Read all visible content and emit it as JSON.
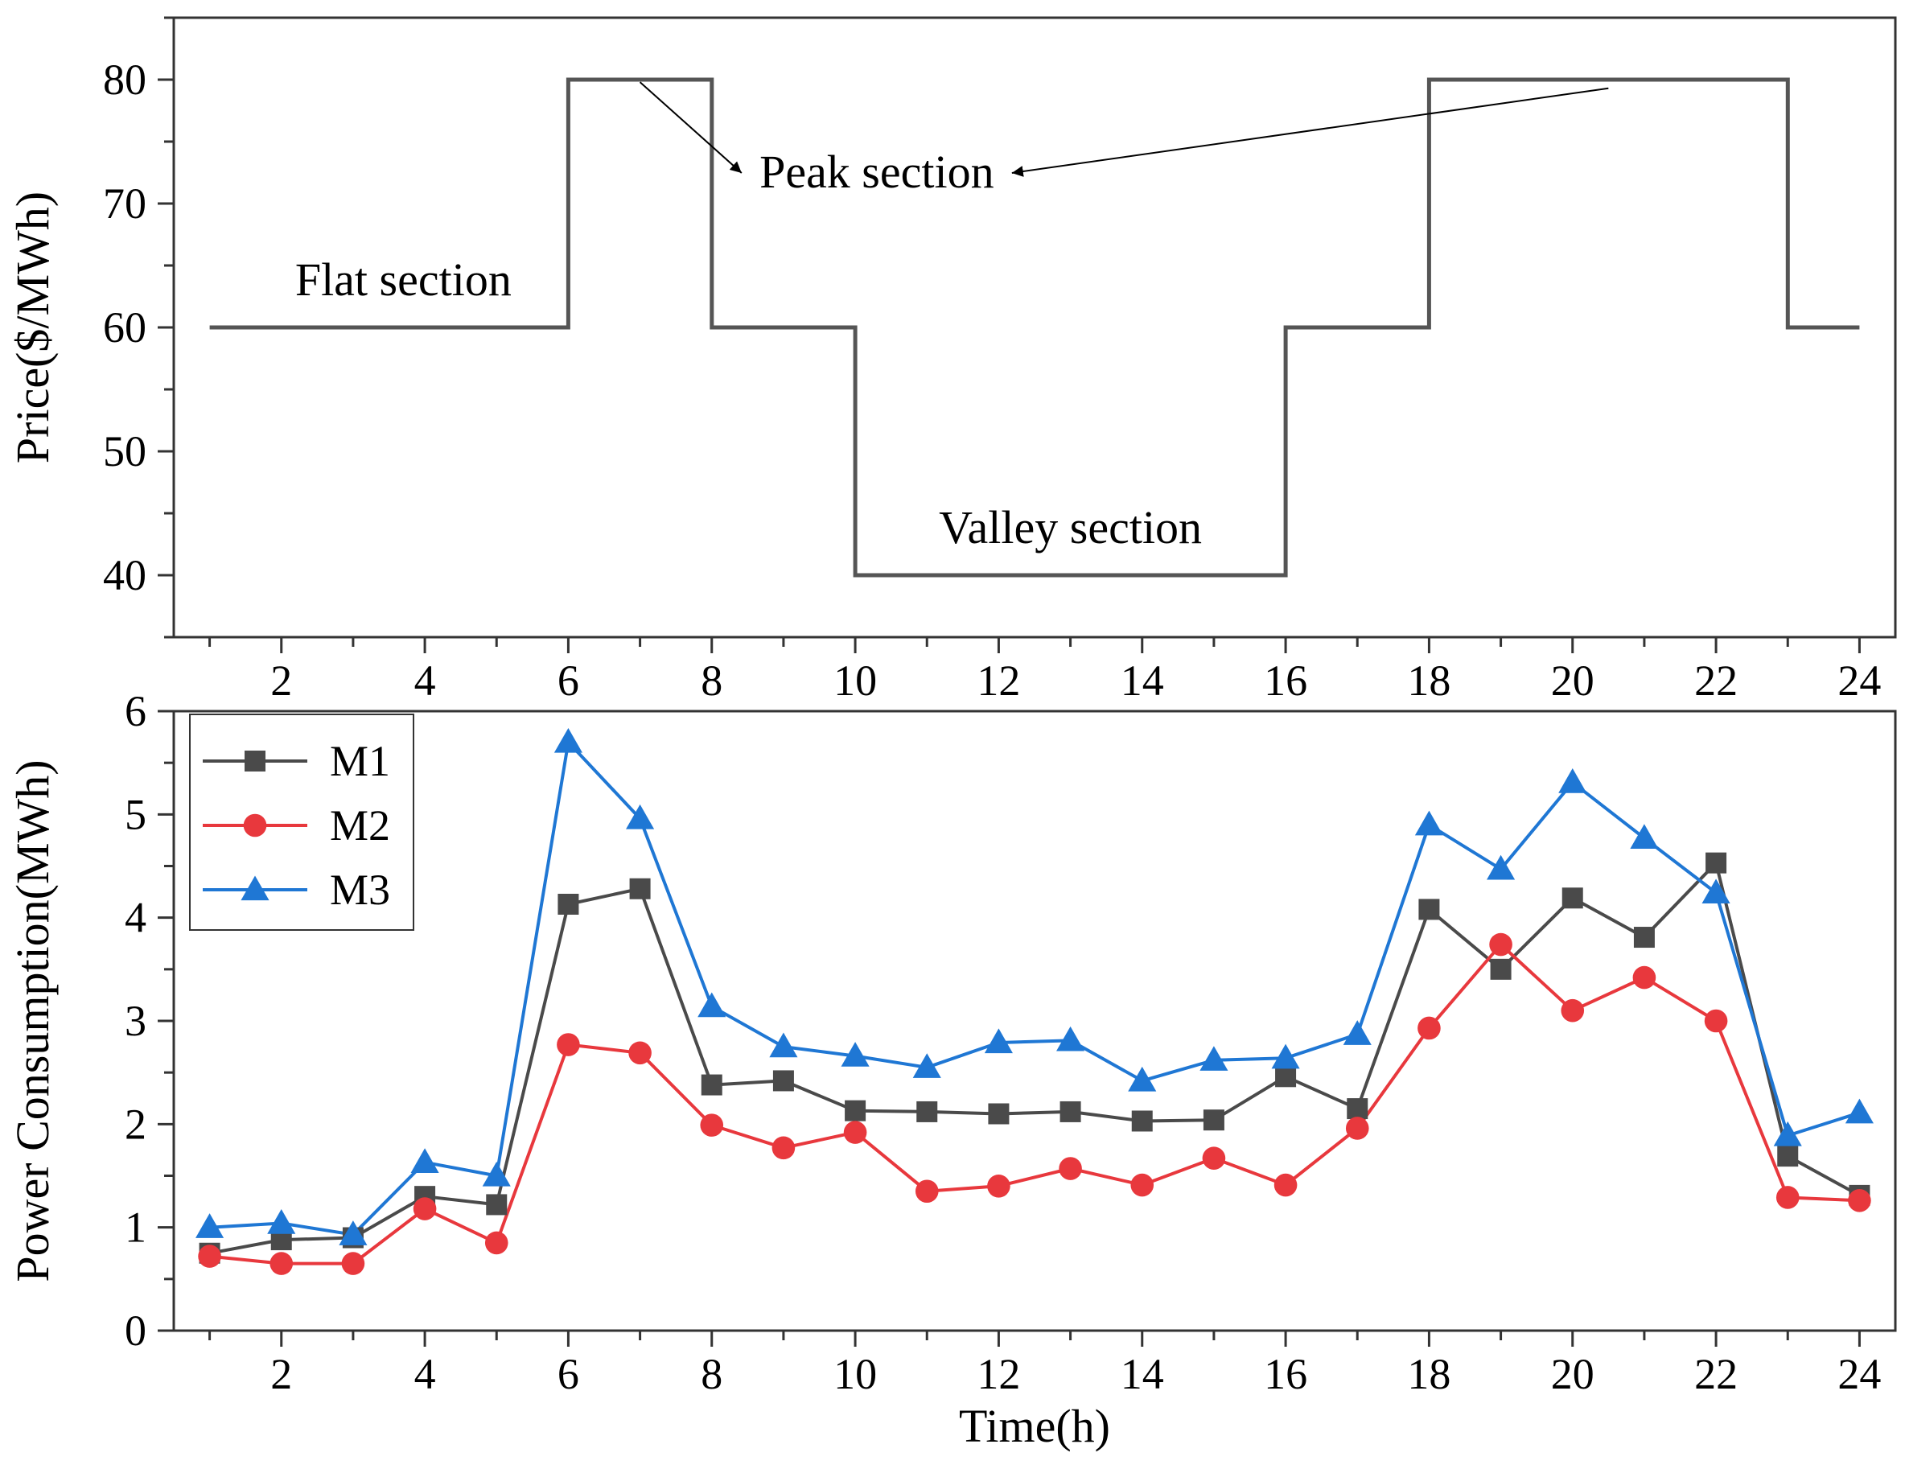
{
  "chart_data": [
    {
      "type": "line",
      "subtype": "step",
      "title": "",
      "xlabel": "",
      "ylabel": "Price($/MWh)",
      "xlim": [
        0.5,
        24.5
      ],
      "ylim": [
        35,
        85
      ],
      "x_ticks": [
        2,
        4,
        6,
        8,
        10,
        12,
        14,
        16,
        18,
        20,
        22,
        24
      ],
      "y_ticks": [
        40,
        50,
        60,
        70,
        80
      ],
      "grid": false,
      "series": [
        {
          "name": "Price",
          "color": "#555555",
          "points": [
            [
              1,
              60
            ],
            [
              6,
              60
            ],
            [
              6,
              80
            ],
            [
              8,
              80
            ],
            [
              8,
              60
            ],
            [
              10,
              60
            ],
            [
              10,
              40
            ],
            [
              16,
              40
            ],
            [
              16,
              60
            ],
            [
              18,
              60
            ],
            [
              18,
              80
            ],
            [
              23,
              80
            ],
            [
              23,
              60
            ],
            [
              24,
              60
            ]
          ]
        }
      ],
      "annotations": [
        {
          "text": "Flat section",
          "x": 3.7,
          "y": 62.6
        },
        {
          "text": "Peak section",
          "x": 10.3,
          "y": 71.3,
          "arrows_from": [
            [
              7,
              79.8
            ],
            [
              20.5,
              79.3
            ]
          ]
        },
        {
          "text": "Valley section",
          "x": 13.0,
          "y": 42.6
        }
      ]
    },
    {
      "type": "line",
      "title": "",
      "xlabel": "Time(h)",
      "ylabel": "Power Consumption(MWh)",
      "xlim": [
        0.5,
        24.5
      ],
      "ylim": [
        0,
        6
      ],
      "x_ticks": [
        2,
        4,
        6,
        8,
        10,
        12,
        14,
        16,
        18,
        20,
        22,
        24
      ],
      "y_ticks": [
        0,
        1,
        2,
        3,
        4,
        5,
        6
      ],
      "legend_position": "top-left",
      "grid": false,
      "x": [
        1,
        2,
        3,
        4,
        5,
        6,
        7,
        8,
        9,
        10,
        11,
        12,
        13,
        14,
        15,
        16,
        17,
        18,
        19,
        20,
        21,
        22,
        23,
        24
      ],
      "series": [
        {
          "name": "M1",
          "color": "#4a4a4a",
          "marker": "square",
          "values": [
            0.75,
            0.88,
            0.9,
            1.3,
            1.22,
            4.13,
            4.28,
            2.38,
            2.42,
            2.13,
            2.12,
            2.1,
            2.12,
            2.03,
            2.04,
            2.46,
            2.15,
            4.08,
            3.5,
            4.19,
            3.81,
            4.53,
            1.69,
            1.31
          ]
        },
        {
          "name": "M2",
          "color": "#e8383d",
          "marker": "circle",
          "values": [
            0.72,
            0.65,
            0.65,
            1.18,
            0.85,
            2.77,
            2.69,
            1.99,
            1.77,
            1.92,
            1.35,
            1.4,
            1.57,
            1.41,
            1.67,
            1.41,
            1.96,
            2.93,
            3.74,
            3.1,
            3.42,
            3.0,
            1.29,
            1.26
          ]
        },
        {
          "name": "M3",
          "color": "#1f77d4",
          "marker": "triangle",
          "values": [
            1.0,
            1.04,
            0.93,
            1.63,
            1.5,
            5.7,
            4.96,
            3.14,
            2.75,
            2.66,
            2.55,
            2.79,
            2.81,
            2.42,
            2.62,
            2.64,
            2.87,
            4.9,
            4.47,
            5.31,
            4.77,
            4.24,
            1.89,
            2.11
          ]
        }
      ]
    }
  ]
}
